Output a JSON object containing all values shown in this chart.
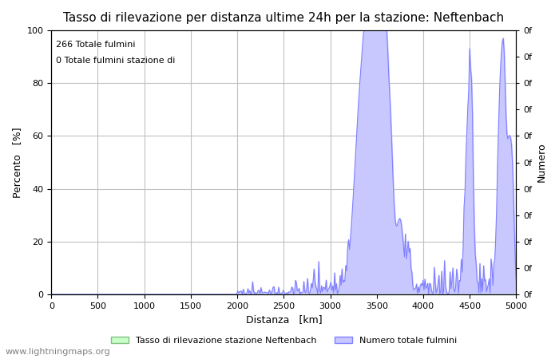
{
  "title": "Tasso di rilevazione per distanza ultime 24h per la stazione: Neftenbach",
  "xlabel": "Distanza   [km]",
  "ylabel_left": "Percento   [%]",
  "ylabel_right": "Numero",
  "annotation_line1": "266 Totale fulmini",
  "annotation_line2": "0 Totale fulmini stazione di",
  "xlim": [
    0,
    5000
  ],
  "ylim": [
    0,
    100
  ],
  "xticks": [
    0,
    500,
    1000,
    1500,
    2000,
    2500,
    3000,
    3500,
    4000,
    4500,
    5000
  ],
  "yticks_left": [
    0,
    20,
    40,
    60,
    80,
    100
  ],
  "yticks_right_labels": [
    "0f",
    "0f",
    "0f",
    "0f",
    "0f",
    "0f",
    "0f",
    "0f",
    "0f",
    "0f",
    "0f"
  ],
  "right_tick_positions": [
    0,
    10,
    20,
    30,
    40,
    50,
    60,
    70,
    80,
    90,
    100
  ],
  "legend_label_green": "Tasso di rilevazione stazione Neftenbach",
  "legend_label_blue": "Numero totale fulmini",
  "fill_color_blue": "#c8c8ff",
  "line_color_blue": "#8080ff",
  "fill_color_green": "#c8ffc8",
  "line_color_green": "#80c080",
  "grid_color": "#c0c0c0",
  "background_color": "#ffffff",
  "watermark": "www.lightningmaps.org",
  "title_fontsize": 11,
  "axis_label_fontsize": 9,
  "tick_fontsize": 8,
  "watermark_fontsize": 8
}
